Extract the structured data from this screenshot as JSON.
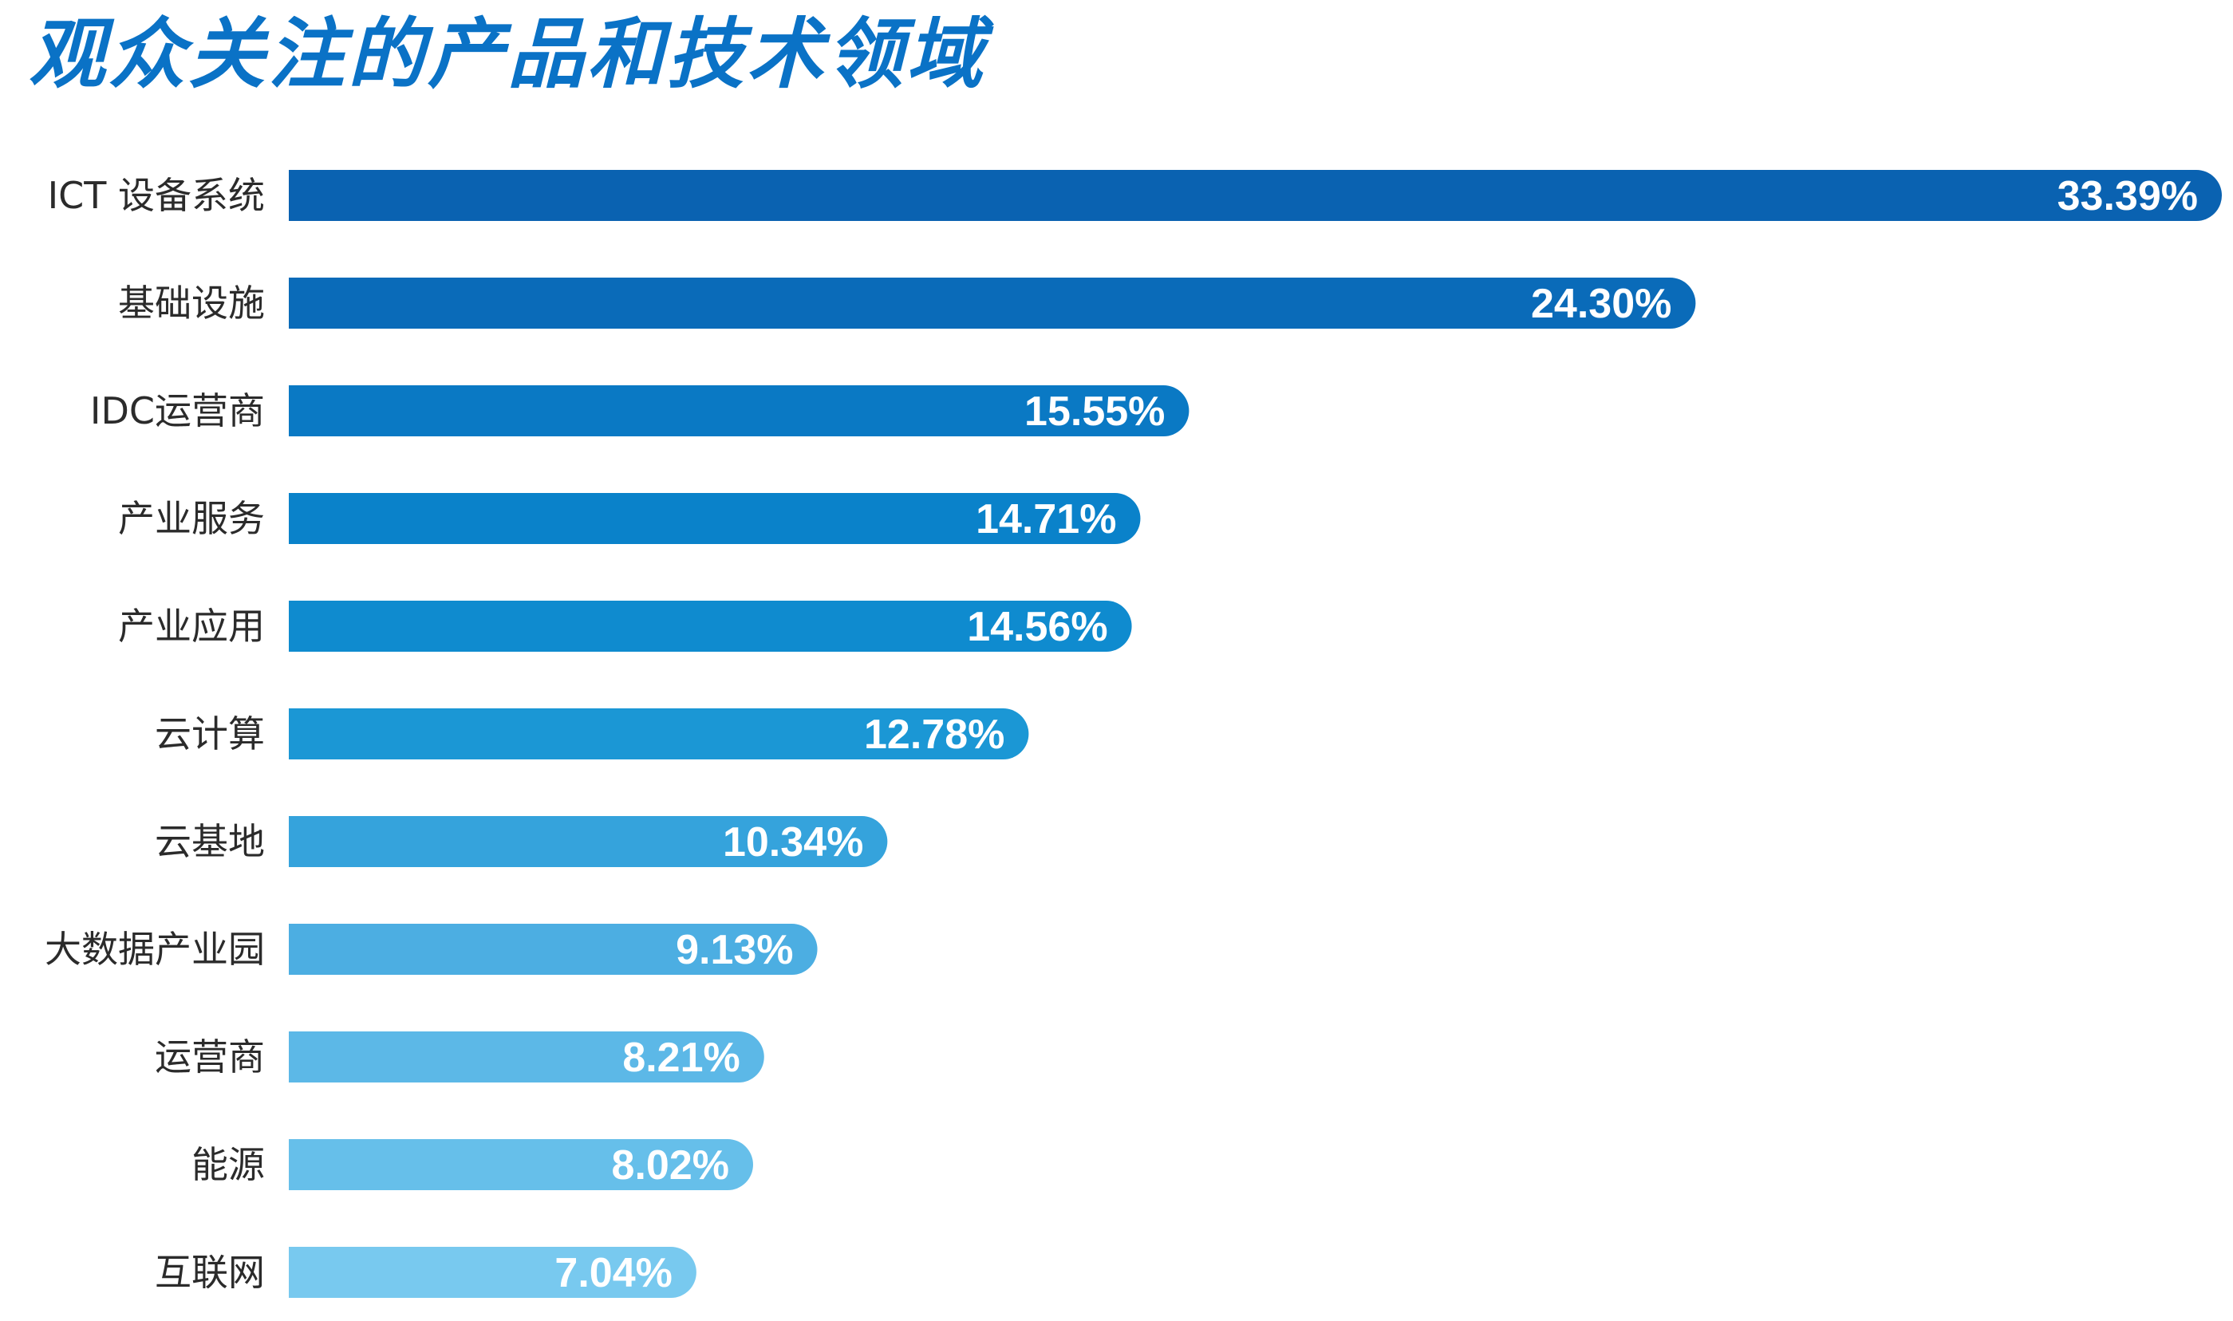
{
  "chart_data": {
    "type": "bar",
    "orientation": "horizontal",
    "title": "观众关注的产品和技术领域",
    "xlabel": "",
    "ylabel": "",
    "grid": false,
    "xlim": [
      0,
      33.39
    ],
    "categories": [
      "ICT 设备系统",
      "基础设施",
      "IDC运营商",
      "产业服务",
      "产业应用",
      "云计算",
      "云基地",
      "大数据产业园",
      "运营商",
      "能源",
      "互联网"
    ],
    "values": [
      33.39,
      24.3,
      15.55,
      14.71,
      14.56,
      12.78,
      10.34,
      9.13,
      8.21,
      8.02,
      7.04
    ],
    "value_labels": [
      "33.39%",
      "24.30%",
      "15.55%",
      "14.71%",
      "14.56%",
      "12.78%",
      "10.34%",
      "9.13%",
      "8.21%",
      "8.02%",
      "7.04%"
    ],
    "colors": [
      "#0a62b1",
      "#0a6bb9",
      "#0a79c4",
      "#0a82ca",
      "#0f8bcf",
      "#1b97d5",
      "#35a3dc",
      "#4caee2",
      "#5cb8e7",
      "#66bfea",
      "#78c9ef"
    ]
  }
}
